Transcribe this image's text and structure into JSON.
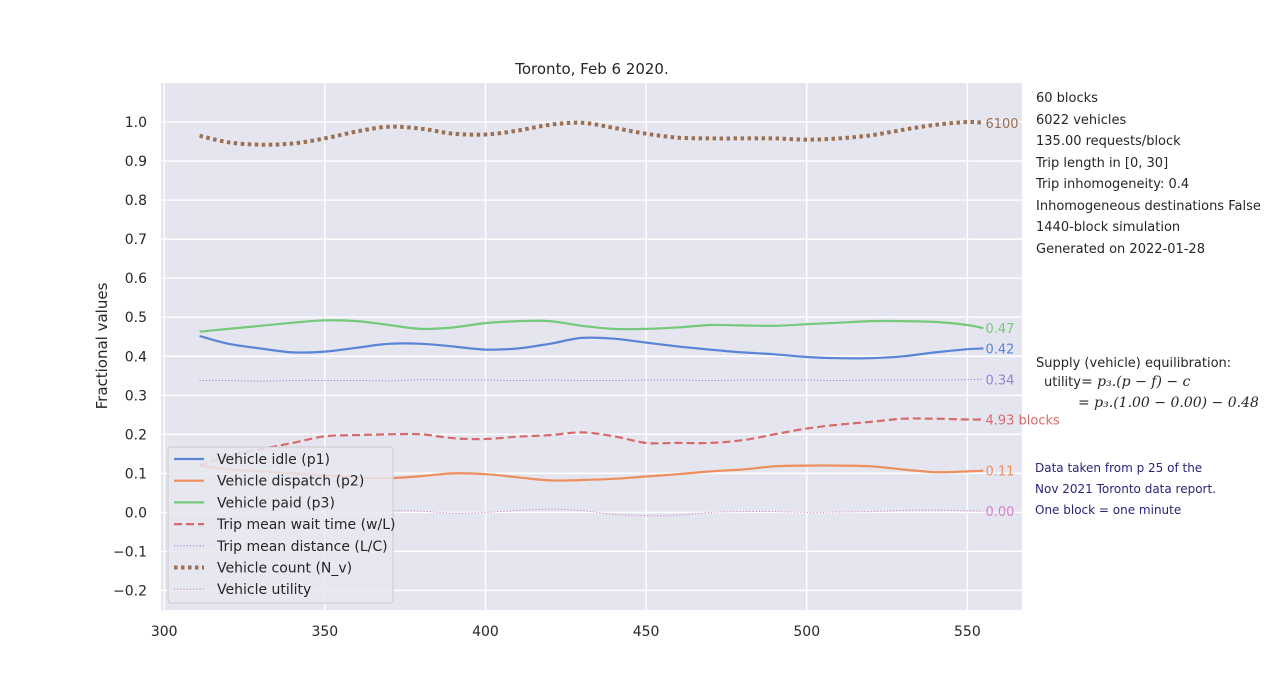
{
  "chart_data": {
    "type": "line",
    "title": "Toronto, Feb 6 2020.",
    "ylabel": "Fractional values",
    "xlabel": "",
    "xlim": [
      299,
      567
    ],
    "ylim": [
      -0.25,
      1.1
    ],
    "x_ticks": [
      300,
      350,
      400,
      450,
      500,
      550
    ],
    "y_ticks": [
      -0.2,
      -0.1,
      0.0,
      0.1,
      0.2,
      0.3,
      0.4,
      0.5,
      0.6,
      0.7,
      0.8,
      0.9,
      1.0
    ],
    "x_tick_labels": [
      "300",
      "350",
      "400",
      "450",
      "500",
      "550"
    ],
    "y_tick_labels": [
      "−0.2",
      "−0.1",
      "0.0",
      "0.1",
      "0.2",
      "0.3",
      "0.4",
      "0.5",
      "0.6",
      "0.7",
      "0.8",
      "0.9",
      "1.0"
    ],
    "grid": true,
    "legend_position": "lower-left",
    "x": [
      311,
      320,
      330,
      340,
      350,
      360,
      370,
      380,
      390,
      400,
      410,
      420,
      430,
      440,
      450,
      460,
      470,
      480,
      490,
      500,
      510,
      520,
      530,
      540,
      550,
      555
    ],
    "series": [
      {
        "name": "Vehicle idle (p1)",
        "color": "#5a85d6",
        "style": "solid",
        "width": 2.2,
        "end_label": "0.42",
        "values": [
          0.452,
          0.432,
          0.42,
          0.41,
          0.412,
          0.422,
          0.432,
          0.432,
          0.425,
          0.417,
          0.42,
          0.432,
          0.447,
          0.445,
          0.435,
          0.425,
          0.417,
          0.41,
          0.405,
          0.398,
          0.395,
          0.395,
          0.4,
          0.41,
          0.418,
          0.42
        ]
      },
      {
        "name": "Vehicle dispatch (p2)",
        "color": "#ee8e5c",
        "style": "solid",
        "width": 2.2,
        "end_label": "0.11",
        "values": [
          0.12,
          0.11,
          0.105,
          0.1,
          0.095,
          0.09,
          0.088,
          0.093,
          0.1,
          0.098,
          0.09,
          0.082,
          0.083,
          0.086,
          0.092,
          0.098,
          0.105,
          0.11,
          0.118,
          0.12,
          0.12,
          0.118,
          0.11,
          0.103,
          0.105,
          0.107
        ]
      },
      {
        "name": "Vehicle paid (p3)",
        "color": "#74c97a",
        "style": "solid",
        "width": 2.2,
        "end_label": "0.47",
        "values": [
          0.463,
          0.47,
          0.478,
          0.486,
          0.492,
          0.49,
          0.48,
          0.47,
          0.474,
          0.485,
          0.49,
          0.49,
          0.478,
          0.47,
          0.47,
          0.474,
          0.48,
          0.479,
          0.478,
          0.482,
          0.486,
          0.49,
          0.49,
          0.488,
          0.48,
          0.472
        ]
      },
      {
        "name": "Trip mean wait time (w/L)",
        "color": "#d76a6a",
        "style": "dashed",
        "width": 2.2,
        "end_label": "4.93 blocks",
        "values": [
          0.12,
          0.145,
          0.162,
          0.178,
          0.195,
          0.198,
          0.2,
          0.2,
          0.19,
          0.188,
          0.194,
          0.198,
          0.205,
          0.195,
          0.178,
          0.178,
          0.178,
          0.185,
          0.2,
          0.215,
          0.225,
          0.232,
          0.24,
          0.24,
          0.238,
          0.238
        ]
      },
      {
        "name": "Trip mean distance (L/C)",
        "color": "#9b7fd1",
        "style": "thin-dotted",
        "width": 1.0,
        "end_label": "0.34",
        "values": [
          0.338,
          0.338,
          0.336,
          0.338,
          0.338,
          0.338,
          0.337,
          0.34,
          0.339,
          0.339,
          0.338,
          0.339,
          0.338,
          0.338,
          0.339,
          0.339,
          0.338,
          0.339,
          0.339,
          0.339,
          0.338,
          0.339,
          0.339,
          0.339,
          0.34,
          0.341
        ]
      },
      {
        "name": "Vehicle count (N_v)",
        "color": "#9c6f50",
        "style": "dotted",
        "width": 4.0,
        "end_label": "6100",
        "values": [
          0.965,
          0.948,
          0.942,
          0.945,
          0.958,
          0.976,
          0.988,
          0.983,
          0.97,
          0.968,
          0.978,
          0.993,
          0.998,
          0.985,
          0.97,
          0.96,
          0.958,
          0.958,
          0.958,
          0.955,
          0.958,
          0.966,
          0.98,
          0.993,
          1.0,
          0.998
        ]
      },
      {
        "name": "Vehicle utility",
        "color": "#d67fd0",
        "style": "thin-dotted",
        "width": 1.0,
        "end_label": "0.00",
        "values": [
          0.01,
          0.01,
          0.01,
          0.01,
          0.01,
          0.008,
          0.005,
          0.003,
          -0.002,
          0.0,
          0.005,
          0.008,
          0.005,
          -0.005,
          -0.008,
          -0.007,
          0.0,
          0.002,
          0.002,
          0.0,
          0.001,
          0.002,
          0.005,
          0.006,
          0.004,
          0.003
        ]
      }
    ]
  },
  "info": {
    "lines": [
      "60 blocks",
      "6022 vehicles",
      "135.00 requests/block",
      "Trip length in [0, 30]",
      "Trip inhomogeneity: 0.4",
      "Inhomogeneous destinations False",
      "1440-block simulation",
      "Generated on 2022-01-28"
    ],
    "equilibration_title": "Supply (vehicle) equilibration:",
    "utility_label": "utility",
    "utility_formula": "= p₃.(p − f) − c",
    "utility_values": "= p₃.(1.00 − 0.00) − 0.48"
  },
  "note": {
    "lines": [
      "Data taken from p 25 of the",
      "Nov 2021 Toronto data report.",
      "One block = one minute"
    ]
  },
  "colors": {
    "plot_background": "#e5e5ef",
    "grid": "#ffffff",
    "note_text": "#262676"
  }
}
